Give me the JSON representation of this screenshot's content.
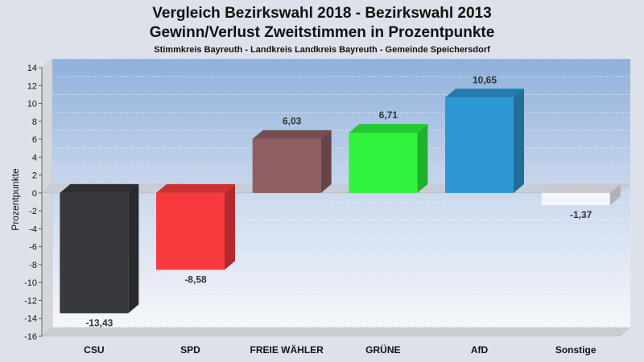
{
  "chart_data": {
    "type": "bar",
    "title": "Vergleich Bezirkswahl 2018 - Bezirkswahl 2013",
    "title2": "Gewinn/Verlust Zweitstimmen in Prozentpunkte",
    "subtitle": "Stimmkreis Bayreuth - Landkreis Landkreis Bayreuth - Gemeinde Speichersdorf",
    "ylabel": "Prozentpunkte",
    "ylim": [
      -16,
      14
    ],
    "yticks": [
      14,
      12,
      10,
      8,
      6,
      4,
      2,
      0,
      -2,
      -4,
      -6,
      -8,
      -10,
      -12,
      -14,
      -16
    ],
    "grid": true,
    "categories": [
      "CSU",
      "SPD",
      "FREIE WÄHLER",
      "GRÜNE",
      "AfD",
      "Sonstige"
    ],
    "values": [
      -13.43,
      -8.58,
      6.03,
      6.71,
      10.65,
      -1.37
    ],
    "value_labels": [
      "-13,43",
      "-8,58",
      "6,03",
      "6,71",
      "10,65",
      "-1,37"
    ],
    "colors": [
      "#38393d",
      "#f73a3e",
      "#8f5e62",
      "#2ef43c",
      "#2c97d3",
      "#f4f5fb"
    ]
  }
}
